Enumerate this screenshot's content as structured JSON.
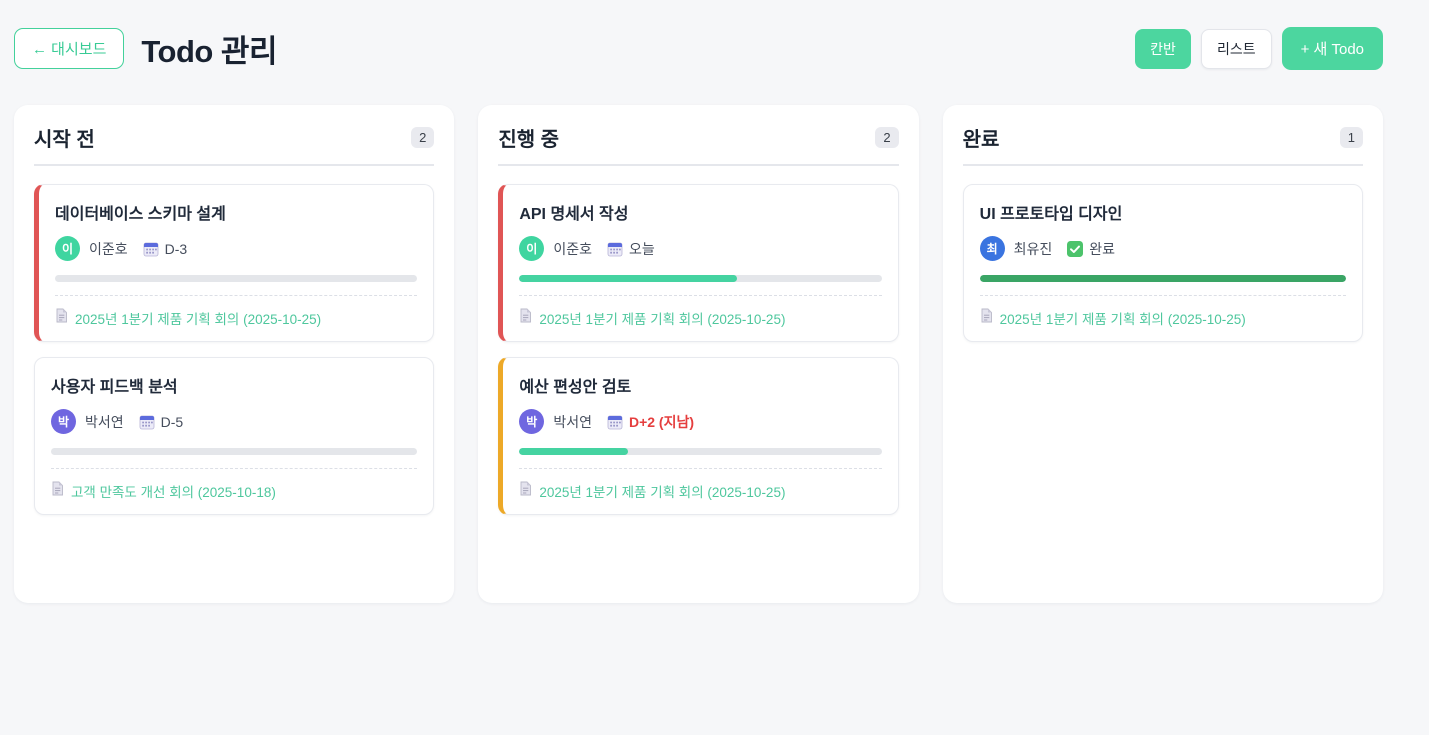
{
  "header": {
    "back_label": "← 대시보드",
    "title": "Todo 관리",
    "kanban_label": "칸반",
    "list_label": "리스트",
    "new_todo_label": "+ 새 Todo"
  },
  "colors": {
    "accent_green": "#4cd69f",
    "overdue_red": "#e53e3e",
    "memo_green": "#4ec79d",
    "progress_green": "#45d3a1",
    "done_progress_green": "#3aa565",
    "red_accent": "#e05555",
    "amber_accent": "#eda928"
  },
  "columns": [
    {
      "title": "시작 전",
      "count": "2",
      "cards": [
        {
          "title": "데이터베이스 스키마 설계",
          "avatar_initial": "이",
          "avatar_color": "#3fd5a0",
          "assignee": "이준호",
          "due_label": "D-3",
          "overdue": false,
          "done": false,
          "progress_percent": 0,
          "progress_color": "#45d3a1",
          "accent_color": "#e05555",
          "memo": "2025년 1분기 제품 기획 회의 (2025-10-25)"
        },
        {
          "title": "사용자 피드백 분석",
          "avatar_initial": "박",
          "avatar_color": "#6f66e0",
          "assignee": "박서연",
          "due_label": "D-5",
          "overdue": false,
          "done": false,
          "progress_percent": 0,
          "progress_color": "#45d3a1",
          "accent_color": null,
          "memo": "고객 만족도 개선 회의 (2025-10-18)"
        }
      ]
    },
    {
      "title": "진행 중",
      "count": "2",
      "cards": [
        {
          "title": "API 명세서 작성",
          "avatar_initial": "이",
          "avatar_color": "#3fd5a0",
          "assignee": "이준호",
          "due_label": "오늘",
          "overdue": false,
          "done": false,
          "progress_percent": 60,
          "progress_color": "#45d3a1",
          "accent_color": "#e05555",
          "memo": "2025년 1분기 제품 기획 회의 (2025-10-25)"
        },
        {
          "title": "예산 편성안 검토",
          "avatar_initial": "박",
          "avatar_color": "#6f66e0",
          "assignee": "박서연",
          "due_label": "D+2 (지남)",
          "overdue": true,
          "done": false,
          "progress_percent": 30,
          "progress_color": "#45d3a1",
          "accent_color": "#eda928",
          "memo": "2025년 1분기 제품 기획 회의 (2025-10-25)"
        }
      ]
    },
    {
      "title": "완료",
      "count": "1",
      "cards": [
        {
          "title": "UI 프로토타입 디자인",
          "avatar_initial": "최",
          "avatar_color": "#3a74e0",
          "assignee": "최유진",
          "due_label": "완료",
          "overdue": false,
          "done": true,
          "progress_percent": 100,
          "progress_color": "#3aa565",
          "accent_color": null,
          "memo": "2025년 1분기 제품 기획 회의 (2025-10-25)"
        }
      ]
    }
  ]
}
